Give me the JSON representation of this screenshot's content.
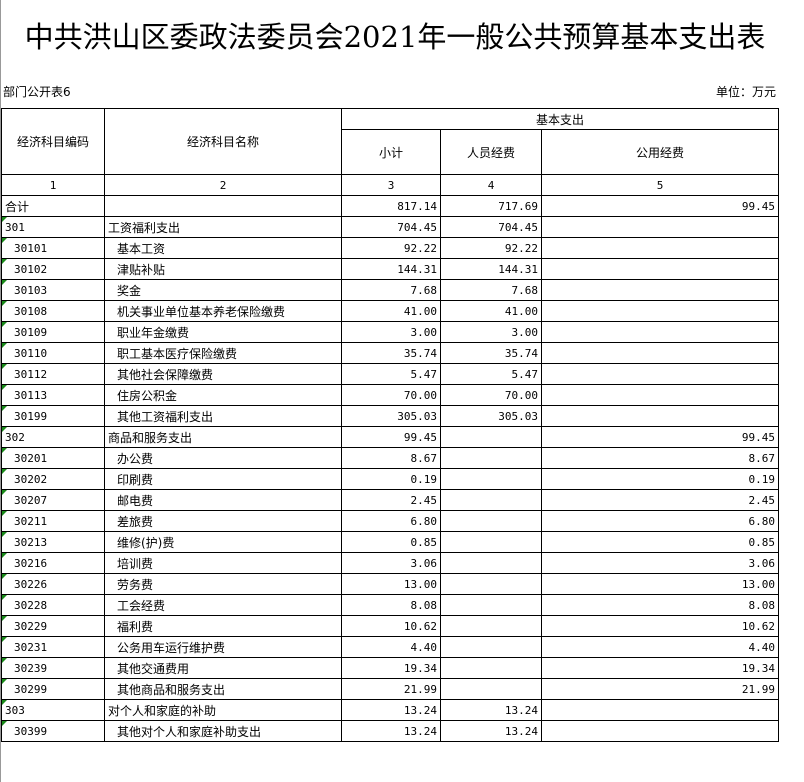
{
  "title": "中共洪山区委政法委员会2021年一般公共预算基本支出表",
  "form_no": "部门公开表6",
  "unit": "单位：万元",
  "headers": {
    "code": "经济科目编码",
    "name": "经济科目名称",
    "basic": "基本支出",
    "subtotal": "小计",
    "personnel": "人员经费",
    "public": "公用经费"
  },
  "col_numbers": [
    "1",
    "2",
    "3",
    "4",
    "5"
  ],
  "rows": [
    {
      "code": "合计",
      "name": "",
      "subtotal": "817.14",
      "personnel": "717.69",
      "public": "99.45",
      "level": 0
    },
    {
      "code": "301",
      "name": "工资福利支出",
      "subtotal": "704.45",
      "personnel": "704.45",
      "public": "",
      "level": 0
    },
    {
      "code": "30101",
      "name": "基本工资",
      "subtotal": "92.22",
      "personnel": "92.22",
      "public": "",
      "level": 1
    },
    {
      "code": "30102",
      "name": "津贴补贴",
      "subtotal": "144.31",
      "personnel": "144.31",
      "public": "",
      "level": 1
    },
    {
      "code": "30103",
      "name": "奖金",
      "subtotal": "7.68",
      "personnel": "7.68",
      "public": "",
      "level": 1
    },
    {
      "code": "30108",
      "name": "机关事业单位基本养老保险缴费",
      "subtotal": "41.00",
      "personnel": "41.00",
      "public": "",
      "level": 1
    },
    {
      "code": "30109",
      "name": "职业年金缴费",
      "subtotal": "3.00",
      "personnel": "3.00",
      "public": "",
      "level": 1
    },
    {
      "code": "30110",
      "name": "职工基本医疗保险缴费",
      "subtotal": "35.74",
      "personnel": "35.74",
      "public": "",
      "level": 1
    },
    {
      "code": "30112",
      "name": "其他社会保障缴费",
      "subtotal": "5.47",
      "personnel": "5.47",
      "public": "",
      "level": 1
    },
    {
      "code": "30113",
      "name": "住房公积金",
      "subtotal": "70.00",
      "personnel": "70.00",
      "public": "",
      "level": 1
    },
    {
      "code": "30199",
      "name": "其他工资福利支出",
      "subtotal": "305.03",
      "personnel": "305.03",
      "public": "",
      "level": 1
    },
    {
      "code": "302",
      "name": "商品和服务支出",
      "subtotal": "99.45",
      "personnel": "",
      "public": "99.45",
      "level": 0
    },
    {
      "code": "30201",
      "name": "办公费",
      "subtotal": "8.67",
      "personnel": "",
      "public": "8.67",
      "level": 1
    },
    {
      "code": "30202",
      "name": "印刷费",
      "subtotal": "0.19",
      "personnel": "",
      "public": "0.19",
      "level": 1
    },
    {
      "code": "30207",
      "name": "邮电费",
      "subtotal": "2.45",
      "personnel": "",
      "public": "2.45",
      "level": 1
    },
    {
      "code": "30211",
      "name": "差旅费",
      "subtotal": "6.80",
      "personnel": "",
      "public": "6.80",
      "level": 1
    },
    {
      "code": "30213",
      "name": "维修(护)费",
      "subtotal": "0.85",
      "personnel": "",
      "public": "0.85",
      "level": 1
    },
    {
      "code": "30216",
      "name": "培训费",
      "subtotal": "3.06",
      "personnel": "",
      "public": "3.06",
      "level": 1
    },
    {
      "code": "30226",
      "name": "劳务费",
      "subtotal": "13.00",
      "personnel": "",
      "public": "13.00",
      "level": 1
    },
    {
      "code": "30228",
      "name": "工会经费",
      "subtotal": "8.08",
      "personnel": "",
      "public": "8.08",
      "level": 1
    },
    {
      "code": "30229",
      "name": "福利费",
      "subtotal": "10.62",
      "personnel": "",
      "public": "10.62",
      "level": 1
    },
    {
      "code": "30231",
      "name": "公务用车运行维护费",
      "subtotal": "4.40",
      "personnel": "",
      "public": "4.40",
      "level": 1
    },
    {
      "code": "30239",
      "name": "其他交通费用",
      "subtotal": "19.34",
      "personnel": "",
      "public": "19.34",
      "level": 1
    },
    {
      "code": "30299",
      "name": "其他商品和服务支出",
      "subtotal": "21.99",
      "personnel": "",
      "public": "21.99",
      "level": 1
    },
    {
      "code": "303",
      "name": "对个人和家庭的补助",
      "subtotal": "13.24",
      "personnel": "13.24",
      "public": "",
      "level": 0
    },
    {
      "code": "30399",
      "name": "其他对个人和家庭补助支出",
      "subtotal": "13.24",
      "personnel": "13.24",
      "public": "",
      "level": 1
    }
  ]
}
